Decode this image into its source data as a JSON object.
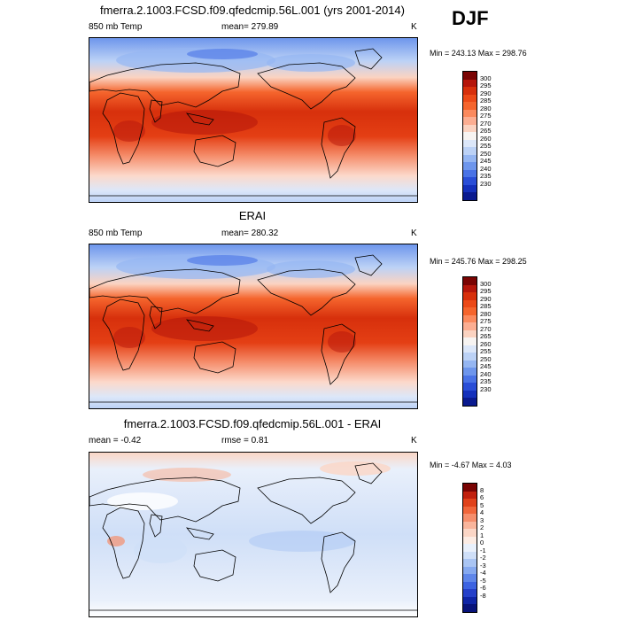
{
  "season": "DJF",
  "panels": [
    {
      "title": "fmerra.2.1003.FCSD.f09.qfedcmip.56L.001 (yrs 2001-2014)",
      "left_label": "850 mb Temp",
      "center_label": "mean= 279.89",
      "units": "K",
      "minmax": "Min = 243.13 Max = 298.76",
      "colorbar": {
        "ticks": [
          "300",
          "295",
          "290",
          "285",
          "280",
          "275",
          "270",
          "265",
          "260",
          "255",
          "250",
          "245",
          "240",
          "235",
          "230"
        ],
        "colors": [
          "#7a0403",
          "#b5160b",
          "#d7300c",
          "#ec4a18",
          "#f5652d",
          "#fb8a5e",
          "#fcae92",
          "#fbd3c1",
          "#f7f4f2",
          "#dce7f9",
          "#bcd2f6",
          "#95b6f2",
          "#6e96ec",
          "#4a73e6",
          "#2a4ed7",
          "#1430bb",
          "#0a1a8f"
        ]
      },
      "fill": "warm"
    },
    {
      "title": "ERAI",
      "left_label": "850 mb Temp",
      "center_label": "mean= 280.32",
      "units": "K",
      "minmax": "Min = 245.76 Max = 298.25",
      "colorbar": {
        "ticks": [
          "300",
          "295",
          "290",
          "285",
          "280",
          "275",
          "270",
          "265",
          "260",
          "255",
          "250",
          "245",
          "240",
          "235",
          "230"
        ],
        "colors": [
          "#7a0403",
          "#b5160b",
          "#d7300c",
          "#ec4a18",
          "#f5652d",
          "#fb8a5e",
          "#fcae92",
          "#fbd3c1",
          "#f7f4f2",
          "#dce7f9",
          "#bcd2f6",
          "#95b6f2",
          "#6e96ec",
          "#4a73e6",
          "#2a4ed7",
          "#1430bb",
          "#0a1a8f"
        ]
      },
      "fill": "warm"
    },
    {
      "title": "fmerra.2.1003.FCSD.f09.qfedcmip.56L.001 - ERAI",
      "left_label": "mean =  -0.42",
      "center_label": "rmse =   0.81",
      "units": "K",
      "minmax": "Min =  -4.67 Max =   4.03",
      "colorbar": {
        "ticks": [
          "8",
          "6",
          "5",
          "4",
          "3",
          "2",
          "1",
          "0",
          "-1",
          "-2",
          "-3",
          "-4",
          "-5",
          "-6",
          "-8"
        ],
        "colors": [
          "#7a0403",
          "#c1200e",
          "#e0421b",
          "#f0663b",
          "#f58e6c",
          "#f9b59c",
          "#fbd6c6",
          "#fcece4",
          "#e9f0fb",
          "#cfdff8",
          "#aac5f3",
          "#86a9ef",
          "#5f86e9",
          "#3d63e1",
          "#2540c9",
          "#0f25a6",
          "#08137a"
        ]
      },
      "fill": "diff"
    }
  ]
}
